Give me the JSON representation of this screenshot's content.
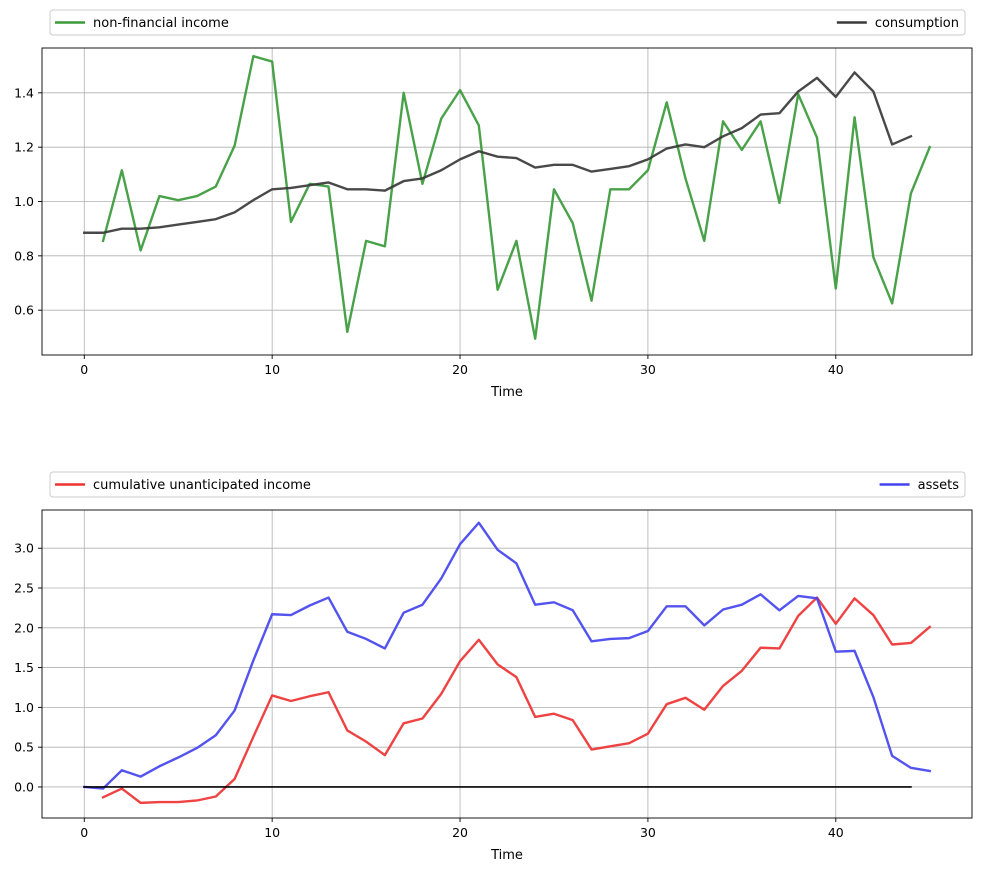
{
  "chart_data": [
    {
      "type": "line",
      "xlabel": "Time",
      "ylabel": "",
      "xlim": [
        -2.25,
        47.25
      ],
      "ylim": [
        0.435,
        1.565
      ],
      "xticks": [
        0,
        10,
        20,
        30,
        40
      ],
      "xtick_labels": [
        "0",
        "10",
        "20",
        "30",
        "40"
      ],
      "yticks": [
        0.6,
        0.8,
        1.0,
        1.2,
        1.4
      ],
      "ytick_labels": [
        "0.6",
        "0.8",
        "1.0",
        "1.2",
        "1.4"
      ],
      "grid": true,
      "legend_placement": "above, expanded across the top",
      "series": [
        {
          "name": "non-financial income",
          "color": "#3a9a3a",
          "x": [
            1,
            2,
            3,
            4,
            5,
            6,
            7,
            8,
            9,
            10,
            11,
            12,
            13,
            14,
            15,
            16,
            17,
            18,
            19,
            20,
            21,
            22,
            23,
            24,
            25,
            26,
            27,
            28,
            29,
            30,
            31,
            32,
            33,
            34,
            35,
            36,
            37,
            38,
            39,
            40,
            41,
            42,
            43,
            44,
            45
          ],
          "values": [
            0.855,
            1.115,
            0.82,
            1.02,
            1.005,
            1.02,
            1.055,
            1.205,
            1.535,
            1.515,
            0.925,
            1.065,
            1.055,
            0.52,
            0.855,
            0.835,
            1.4,
            1.065,
            1.305,
            1.41,
            1.28,
            0.675,
            0.855,
            0.495,
            1.045,
            0.92,
            0.635,
            1.045,
            1.045,
            1.115,
            1.365,
            1.085,
            0.855,
            1.295,
            1.19,
            1.295,
            0.995,
            1.395,
            1.235,
            0.68,
            1.31,
            0.795,
            0.625,
            1.03,
            1.2
          ]
        },
        {
          "name": "consumption",
          "color": "#3a3a3a",
          "x": [
            0,
            1,
            2,
            3,
            4,
            5,
            6,
            7,
            8,
            9,
            10,
            11,
            12,
            13,
            14,
            15,
            16,
            17,
            18,
            19,
            20,
            21,
            22,
            23,
            24,
            25,
            26,
            27,
            28,
            29,
            30,
            31,
            32,
            33,
            34,
            35,
            36,
            37,
            38,
            39,
            40,
            41,
            42,
            43,
            44
          ],
          "values": [
            0.885,
            0.885,
            0.9,
            0.9,
            0.905,
            0.915,
            0.925,
            0.935,
            0.96,
            1.005,
            1.045,
            1.05,
            1.06,
            1.07,
            1.045,
            1.045,
            1.04,
            1.075,
            1.085,
            1.115,
            1.155,
            1.185,
            1.165,
            1.16,
            1.125,
            1.135,
            1.135,
            1.11,
            1.12,
            1.13,
            1.155,
            1.195,
            1.21,
            1.2,
            1.24,
            1.27,
            1.32,
            1.325,
            1.405,
            1.455,
            1.385,
            1.475,
            1.405,
            1.21,
            1.24
          ]
        }
      ]
    },
    {
      "type": "line",
      "xlabel": "Time",
      "ylabel": "",
      "xlim": [
        -2.25,
        47.25
      ],
      "ylim": [
        -0.39,
        3.48
      ],
      "xticks": [
        0,
        10,
        20,
        30,
        40
      ],
      "xtick_labels": [
        "0",
        "10",
        "20",
        "30",
        "40"
      ],
      "yticks": [
        0.0,
        0.5,
        1.0,
        1.5,
        2.0,
        2.5,
        3.0
      ],
      "ytick_labels": [
        "0.0",
        "0.5",
        "1.0",
        "1.5",
        "2.0",
        "2.5",
        "3.0"
      ],
      "grid": true,
      "legend_placement": "above, expanded across the top",
      "series": [
        {
          "name": "cumulative unanticipated income",
          "color": "#ee3333",
          "x": [
            1,
            2,
            3,
            4,
            5,
            6,
            7,
            8,
            9,
            10,
            11,
            12,
            13,
            14,
            15,
            16,
            17,
            18,
            19,
            20,
            21,
            22,
            23,
            24,
            25,
            26,
            27,
            28,
            29,
            30,
            31,
            32,
            33,
            34,
            35,
            36,
            37,
            38,
            39,
            40,
            41,
            42,
            43,
            44,
            45
          ],
          "values": [
            -0.13,
            -0.02,
            -0.2,
            -0.19,
            -0.19,
            -0.17,
            -0.12,
            0.1,
            0.63,
            1.15,
            1.08,
            1.14,
            1.19,
            0.71,
            0.57,
            0.4,
            0.8,
            0.86,
            1.17,
            1.58,
            1.85,
            1.54,
            1.38,
            0.88,
            0.92,
            0.84,
            0.47,
            0.51,
            0.55,
            0.67,
            1.04,
            1.12,
            0.97,
            1.27,
            1.46,
            1.75,
            1.74,
            2.15,
            2.38,
            2.05,
            2.37,
            2.16,
            1.79,
            1.81,
            2.01
          ]
        },
        {
          "name": "assets",
          "color": "#4444ee",
          "x": [
            0,
            1,
            2,
            3,
            4,
            5,
            6,
            7,
            8,
            9,
            10,
            11,
            12,
            13,
            14,
            15,
            16,
            17,
            18,
            19,
            20,
            21,
            22,
            23,
            24,
            25,
            26,
            27,
            28,
            29,
            30,
            31,
            32,
            33,
            34,
            35,
            36,
            37,
            38,
            39,
            40,
            41,
            42,
            43,
            44,
            45
          ],
          "values": [
            0.0,
            -0.02,
            0.21,
            0.13,
            0.26,
            0.37,
            0.49,
            0.65,
            0.96,
            1.59,
            2.17,
            2.16,
            2.28,
            2.38,
            1.95,
            1.86,
            1.74,
            2.19,
            2.29,
            2.62,
            3.05,
            3.32,
            2.98,
            2.81,
            2.29,
            2.32,
            2.22,
            1.83,
            1.86,
            1.87,
            1.96,
            2.27,
            2.27,
            2.03,
            2.23,
            2.29,
            2.42,
            2.22,
            2.4,
            2.37,
            1.7,
            1.71,
            1.13,
            0.39,
            0.24,
            0.2
          ]
        },
        {
          "name": "",
          "color": "#000000",
          "x": [
            0,
            44
          ],
          "values": [
            0.0,
            0.0
          ]
        }
      ]
    }
  ]
}
